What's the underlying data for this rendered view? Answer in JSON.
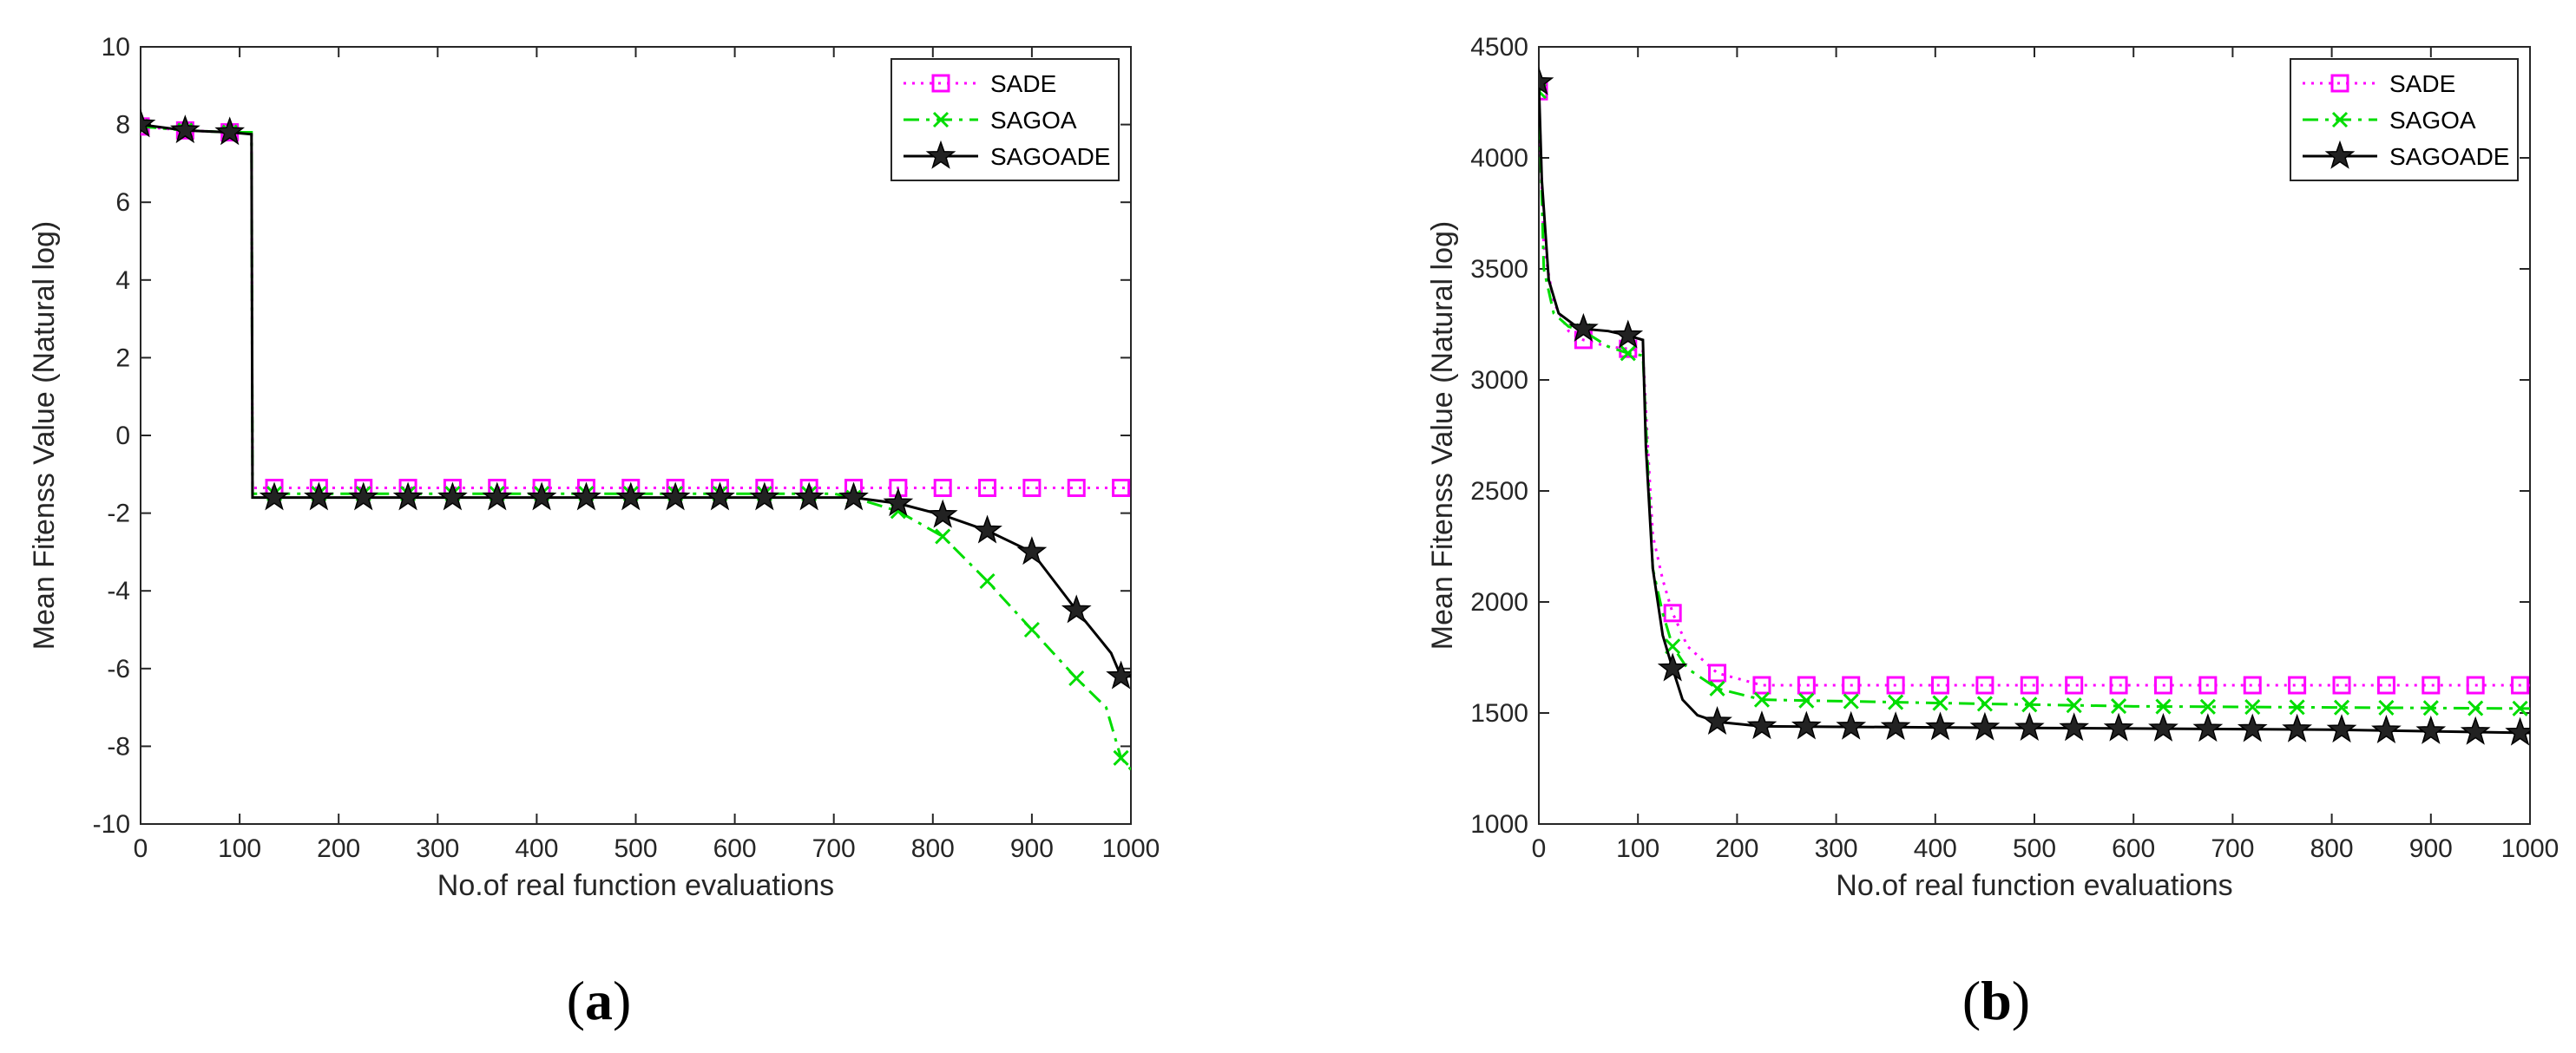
{
  "chart_data": [
    {
      "type": "line",
      "panel_label": "(a)",
      "panel_letter": "a",
      "xlabel": "No.of real function evaluations",
      "ylabel": "Mean Fitenss Value (Natural log)",
      "xlim": [
        0,
        1000
      ],
      "ylim": [
        -10,
        10
      ],
      "xticks": [
        "0",
        "100",
        "200",
        "300",
        "400",
        "500",
        "600",
        "700",
        "800",
        "900",
        "1000"
      ],
      "yticks": [
        "-10",
        "-8",
        "-6",
        "-4",
        "-2",
        "0",
        "2",
        "4",
        "6",
        "8",
        "10"
      ],
      "legend_position": "top-right",
      "series": [
        {
          "name": "SADE",
          "color": "#ff00ff",
          "dash": "dotted",
          "marker": "square",
          "x": [
            0,
            45,
            90,
            112,
            113,
            135,
            1000
          ],
          "y": [
            7.95,
            7.85,
            7.8,
            7.8,
            -1.35,
            -1.35,
            -1.35
          ],
          "marker_x": [
            0,
            45,
            90,
            135,
            180,
            225,
            270,
            315,
            360,
            405,
            450,
            495,
            540,
            585,
            630,
            675,
            720,
            765,
            810,
            855,
            900,
            945,
            990
          ]
        },
        {
          "name": "SAGOA",
          "color": "#00dd00",
          "dash": "dashdot",
          "marker": "x",
          "x": [
            0,
            45,
            90,
            112,
            113,
            135,
            700,
            720,
            765,
            810,
            855,
            900,
            945,
            975,
            990,
            1000
          ],
          "y": [
            7.95,
            7.85,
            7.8,
            7.8,
            -1.5,
            -1.5,
            -1.5,
            -1.6,
            -1.95,
            -2.6,
            -3.75,
            -5.0,
            -6.25,
            -7.0,
            -8.3,
            -8.6
          ],
          "marker_x": [
            0,
            45,
            90,
            135,
            180,
            225,
            270,
            315,
            360,
            405,
            450,
            495,
            540,
            585,
            630,
            675,
            720,
            765,
            810,
            855,
            900,
            945,
            990
          ]
        },
        {
          "name": "SAGOADE",
          "color": "#000000",
          "dash": "solid",
          "marker": "star",
          "x": [
            0,
            45,
            90,
            112,
            113,
            135,
            720,
            765,
            810,
            855,
            900,
            945,
            980,
            990,
            1000
          ],
          "y": [
            8.0,
            7.85,
            7.8,
            7.75,
            -1.6,
            -1.6,
            -1.6,
            -1.75,
            -2.05,
            -2.45,
            -3.0,
            -4.5,
            -5.6,
            -6.2,
            -6.2
          ],
          "marker_x": [
            0,
            45,
            90,
            135,
            180,
            225,
            270,
            315,
            360,
            405,
            450,
            495,
            540,
            585,
            630,
            675,
            720,
            765,
            810,
            855,
            900,
            945,
            990
          ]
        }
      ]
    },
    {
      "type": "line",
      "panel_label": "(b)",
      "panel_letter": "b",
      "xlabel": "No.of real function evaluations",
      "ylabel": "Mean Fitenss Value (Natural log)",
      "xlim": [
        0,
        1000
      ],
      "ylim": [
        1000,
        4500
      ],
      "xticks": [
        "0",
        "100",
        "200",
        "300",
        "400",
        "500",
        "600",
        "700",
        "800",
        "900",
        "1000"
      ],
      "yticks": [
        "1000",
        "1500",
        "2000",
        "2500",
        "3000",
        "3500",
        "4000",
        "4500"
      ],
      "legend_position": "top-right",
      "series": [
        {
          "name": "SADE",
          "color": "#ff00ff",
          "dash": "dotted",
          "marker": "square",
          "x": [
            0,
            5,
            15,
            30,
            45,
            70,
            90,
            105,
            110,
            115,
            125,
            135,
            150,
            180,
            225,
            1000
          ],
          "y": [
            4300,
            3600,
            3350,
            3220,
            3180,
            3150,
            3140,
            3130,
            2700,
            2300,
            2100,
            1950,
            1800,
            1680,
            1625,
            1625
          ],
          "marker_x": [
            0,
            45,
            90,
            135,
            180,
            225,
            270,
            315,
            360,
            405,
            450,
            495,
            540,
            585,
            630,
            675,
            720,
            765,
            810,
            855,
            900,
            945,
            990
          ]
        },
        {
          "name": "SAGOA",
          "color": "#00dd00",
          "dash": "dashdot",
          "marker": "x",
          "x": [
            0,
            5,
            15,
            30,
            45,
            70,
            90,
            105,
            110,
            115,
            125,
            135,
            150,
            180,
            225,
            400,
            600,
            800,
            1000
          ],
          "y": [
            4300,
            3500,
            3300,
            3240,
            3220,
            3150,
            3120,
            3110,
            2600,
            2150,
            1950,
            1800,
            1700,
            1610,
            1560,
            1545,
            1530,
            1525,
            1520
          ],
          "marker_x": [
            0,
            45,
            90,
            135,
            180,
            225,
            270,
            315,
            360,
            405,
            450,
            495,
            540,
            585,
            630,
            675,
            720,
            765,
            810,
            855,
            900,
            945,
            990
          ]
        },
        {
          "name": "SAGOADE",
          "color": "#000000",
          "dash": "solid",
          "marker": "star",
          "x": [
            0,
            3,
            10,
            20,
            35,
            45,
            70,
            90,
            105,
            108,
            115,
            125,
            135,
            145,
            160,
            180,
            225,
            400,
            600,
            800,
            1000
          ],
          "y": [
            4340,
            3900,
            3450,
            3300,
            3250,
            3230,
            3220,
            3200,
            3180,
            2700,
            2150,
            1850,
            1700,
            1560,
            1490,
            1460,
            1440,
            1435,
            1430,
            1425,
            1410
          ],
          "marker_x": [
            0,
            45,
            90,
            135,
            180,
            225,
            270,
            315,
            360,
            405,
            450,
            495,
            540,
            585,
            630,
            675,
            720,
            765,
            810,
            855,
            900,
            945,
            990
          ]
        }
      ]
    }
  ]
}
